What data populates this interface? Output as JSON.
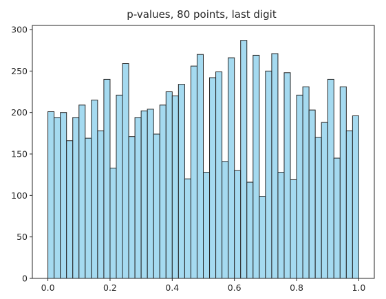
{
  "chart_data": {
    "type": "bar",
    "title": "p-values, 80 points, last digit",
    "xlabel": "",
    "ylabel": "",
    "xlim": [
      -0.05,
      1.05
    ],
    "ylim": [
      0,
      305
    ],
    "bin_width": 0.02,
    "x_ticks": [
      0.0,
      0.2,
      0.4,
      0.6,
      0.8,
      1.0
    ],
    "x_tick_labels": [
      "0.0",
      "0.2",
      "0.4",
      "0.6",
      "0.8",
      "1.0"
    ],
    "y_ticks": [
      0,
      50,
      100,
      150,
      200,
      250,
      300
    ],
    "y_tick_labels": [
      "0",
      "50",
      "100",
      "150",
      "200",
      "250",
      "300"
    ],
    "bins_start": [
      0.0,
      0.02,
      0.04,
      0.06,
      0.08,
      0.1,
      0.12,
      0.14,
      0.16,
      0.18,
      0.2,
      0.22,
      0.24,
      0.26,
      0.28,
      0.3,
      0.32,
      0.34,
      0.36,
      0.38,
      0.4,
      0.42,
      0.44,
      0.46,
      0.48,
      0.5,
      0.52,
      0.54,
      0.56,
      0.58,
      0.6,
      0.62,
      0.64,
      0.66,
      0.68,
      0.7,
      0.72,
      0.74,
      0.76,
      0.78,
      0.8,
      0.82,
      0.84,
      0.86,
      0.88,
      0.9,
      0.92,
      0.94,
      0.96,
      0.98
    ],
    "values": [
      201,
      194,
      200,
      166,
      194,
      209,
      169,
      215,
      178,
      240,
      133,
      221,
      259,
      171,
      194,
      202,
      204,
      174,
      209,
      225,
      220,
      234,
      120,
      256,
      270,
      128,
      242,
      249,
      141,
      266,
      130,
      287,
      116,
      269,
      99,
      250,
      271,
      128,
      248,
      119,
      221,
      231,
      203,
      170,
      188,
      240,
      145,
      231,
      178,
      196
    ],
    "grid": false,
    "bar_color": "#87ceeb",
    "edge_color": "#262626"
  }
}
